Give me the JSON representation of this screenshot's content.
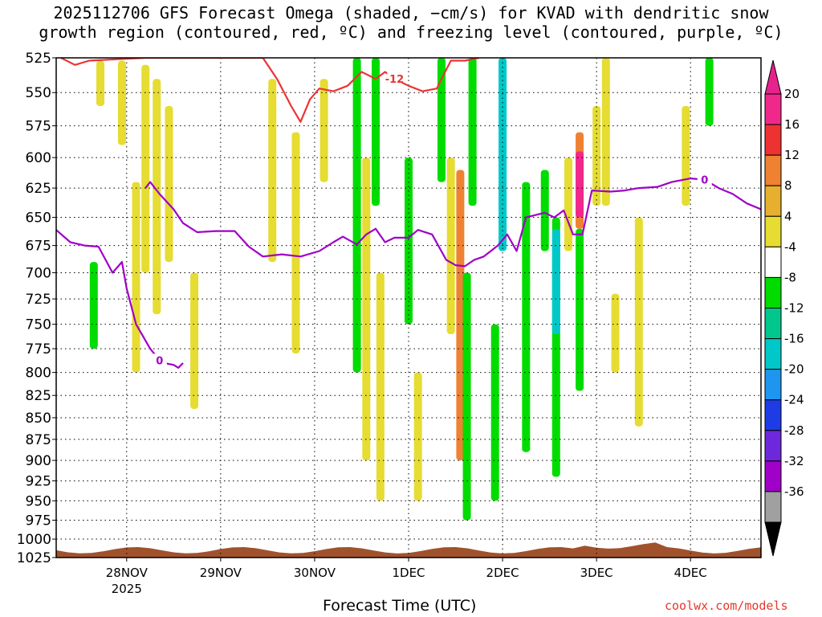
{
  "header": {
    "title_line1": "2025112706 GFS Forecast Omega (shaded, −cm/s) for KVAD with dendritic snow",
    "title_line2": "growth region (contoured, red, ºC) and freezing level (contoured, purple, ºC)"
  },
  "footer": {
    "xlabel": "Forecast Time (UTC)",
    "credit": "coolwx.com/models"
  },
  "chart_data": {
    "type": "heatmap",
    "title": "2025112706 GFS Forecast Omega (shaded, −cm/s) for KVAD with dendritic snow growth region (contoured, red, ºC) and freezing level (contoured, purple, ºC)",
    "xlabel": "Forecast Time (UTC)",
    "ylabel": "",
    "y_axis": {
      "ticks": [
        525,
        550,
        575,
        600,
        625,
        650,
        675,
        700,
        725,
        750,
        775,
        800,
        825,
        850,
        875,
        900,
        925,
        950,
        975,
        1000,
        1025
      ],
      "range": [
        525,
        1025
      ]
    },
    "x_axis": {
      "ticks": [
        "28NOV",
        "29NOV",
        "30NOV",
        "1DEC",
        "2DEC",
        "3DEC",
        "4DEC"
      ],
      "subtick_label": "2025",
      "range_days": [
        27.25,
        34.75
      ]
    },
    "grid": true,
    "colorbar": {
      "labels": [
        "20",
        "16",
        "12",
        "8",
        "4",
        "-4",
        "-8",
        "-12",
        "-16",
        "-20",
        "-24",
        "-28",
        "-32",
        "-36"
      ],
      "colors": [
        "#f0288c",
        "#ee3232",
        "#ee8232",
        "#e6af2d",
        "#e6dc32",
        "#ffffff",
        "#00dc00",
        "#00c88c",
        "#00c8c8",
        "#1e96f0",
        "#1e3ce6",
        "#6e28dc",
        "#a000c8",
        "#a0a0a0"
      ],
      "over_color": "#e6238c",
      "under_color": "#000000"
    },
    "shaded_regions": [
      {
        "day": 27.72,
        "p_top": 527,
        "p_bot": 560,
        "value": 5,
        "color": "#e6dc32"
      },
      {
        "day": 27.95,
        "p_top": 527,
        "p_bot": 590,
        "value": 5,
        "color": "#e6dc32"
      },
      {
        "day": 28.1,
        "p_top": 620,
        "p_bot": 800,
        "value": 5,
        "color": "#e6dc32"
      },
      {
        "day": 28.2,
        "p_top": 530,
        "p_bot": 700,
        "value": 6,
        "color": "#e6dc32"
      },
      {
        "day": 28.32,
        "p_top": 540,
        "p_bot": 740,
        "value": 6,
        "color": "#e6dc32"
      },
      {
        "day": 28.45,
        "p_top": 560,
        "p_bot": 690,
        "value": 6,
        "color": "#e6dc32"
      },
      {
        "day": 28.72,
        "p_top": 700,
        "p_bot": 840,
        "value": 5,
        "color": "#e6dc32"
      },
      {
        "day": 27.65,
        "p_top": 690,
        "p_bot": 775,
        "value": -6,
        "color": "#00dc00"
      },
      {
        "day": 29.55,
        "p_top": 540,
        "p_bot": 690,
        "value": 5,
        "color": "#e6dc32"
      },
      {
        "day": 29.8,
        "p_top": 580,
        "p_bot": 780,
        "value": 5,
        "color": "#e6dc32"
      },
      {
        "day": 30.1,
        "p_top": 540,
        "p_bot": 620,
        "value": 5,
        "color": "#e6dc32"
      },
      {
        "day": 30.45,
        "p_top": 525,
        "p_bot": 800,
        "value": -7,
        "color": "#00dc00"
      },
      {
        "day": 30.55,
        "p_top": 600,
        "p_bot": 900,
        "value": 5,
        "color": "#e6dc32"
      },
      {
        "day": 30.65,
        "p_top": 525,
        "p_bot": 640,
        "value": -6,
        "color": "#00dc00"
      },
      {
        "day": 30.7,
        "p_top": 700,
        "p_bot": 950,
        "value": 5,
        "color": "#e6dc32"
      },
      {
        "day": 31.0,
        "p_top": 600,
        "p_bot": 750,
        "value": -8,
        "color": "#00dc00"
      },
      {
        "day": 31.1,
        "p_top": 800,
        "p_bot": 950,
        "value": 5,
        "color": "#e6dc32"
      },
      {
        "day": 31.35,
        "p_top": 525,
        "p_bot": 620,
        "value": -7,
        "color": "#00dc00"
      },
      {
        "day": 31.45,
        "p_top": 600,
        "p_bot": 760,
        "value": 6,
        "color": "#e6dc32"
      },
      {
        "day": 31.55,
        "p_top": 610,
        "p_bot": 900,
        "value": 10,
        "color": "#ee8232"
      },
      {
        "day": 31.62,
        "p_top": 700,
        "p_bot": 975,
        "value": -8,
        "color": "#00dc00"
      },
      {
        "day": 31.68,
        "p_top": 525,
        "p_bot": 640,
        "value": -8,
        "color": "#00dc00"
      },
      {
        "day": 31.92,
        "p_top": 750,
        "p_bot": 950,
        "value": -8,
        "color": "#00dc00"
      },
      {
        "day": 32.0,
        "p_top": 525,
        "p_bot": 680,
        "value": -14,
        "color": "#00c8c8"
      },
      {
        "day": 32.25,
        "p_top": 620,
        "p_bot": 890,
        "value": -8,
        "color": "#00dc00"
      },
      {
        "day": 32.45,
        "p_top": 610,
        "p_bot": 680,
        "value": -8,
        "color": "#00dc00"
      },
      {
        "day": 32.57,
        "p_top": 650,
        "p_bot": 920,
        "value": -8,
        "color": "#00dc00"
      },
      {
        "day": 32.57,
        "p_top": 660,
        "p_bot": 760,
        "value": -13,
        "color": "#00c8c8"
      },
      {
        "day": 32.7,
        "p_top": 600,
        "p_bot": 680,
        "value": 5,
        "color": "#e6dc32"
      },
      {
        "day": 32.82,
        "p_top": 580,
        "p_bot": 660,
        "value": 10,
        "color": "#ee8232"
      },
      {
        "day": 32.82,
        "p_top": 595,
        "p_bot": 650,
        "value": 20,
        "color": "#f0288c"
      },
      {
        "day": 32.82,
        "p_top": 660,
        "p_bot": 820,
        "value": -8,
        "color": "#00dc00"
      },
      {
        "day": 33.0,
        "p_top": 560,
        "p_bot": 640,
        "value": 5,
        "color": "#e6dc32"
      },
      {
        "day": 33.1,
        "p_top": 525,
        "p_bot": 640,
        "value": 6,
        "color": "#e6dc32"
      },
      {
        "day": 33.2,
        "p_top": 720,
        "p_bot": 800,
        "value": 5,
        "color": "#e6dc32"
      },
      {
        "day": 33.45,
        "p_top": 650,
        "p_bot": 860,
        "value": 5,
        "color": "#e6dc32"
      },
      {
        "day": 33.95,
        "p_top": 560,
        "p_bot": 640,
        "value": 5,
        "color": "#e6dc32"
      },
      {
        "day": 34.2,
        "p_top": 525,
        "p_bot": 575,
        "value": -8,
        "color": "#00dc00"
      }
    ],
    "series": [
      {
        "name": "-12",
        "color": "#ee3232",
        "label_value": "-12",
        "points": [
          [
            27.3,
            525
          ],
          [
            27.45,
            530
          ],
          [
            27.6,
            527
          ],
          [
            28.2,
            525
          ],
          [
            29.45,
            525
          ],
          [
            29.6,
            540
          ],
          [
            29.75,
            560
          ],
          [
            29.85,
            572
          ],
          [
            29.95,
            555
          ],
          [
            30.05,
            547
          ],
          [
            30.2,
            549
          ],
          [
            30.35,
            545
          ],
          [
            30.5,
            535
          ],
          [
            30.65,
            540
          ],
          [
            30.75,
            535
          ],
          [
            30.85,
            540
          ],
          [
            31.0,
            545
          ],
          [
            31.15,
            549
          ],
          [
            31.3,
            547
          ],
          [
            31.35,
            540
          ],
          [
            31.45,
            527
          ],
          [
            31.6,
            527
          ],
          [
            31.75,
            525
          ]
        ],
        "label_day": 30.9
      },
      {
        "name": "0",
        "color": "#a000c8",
        "label_value": "0",
        "points": [
          [
            27.25,
            661
          ],
          [
            27.4,
            672
          ],
          [
            27.55,
            675
          ],
          [
            27.7,
            676
          ],
          [
            27.85,
            700
          ],
          [
            27.95,
            690
          ],
          [
            28.0,
            715
          ],
          [
            28.1,
            750
          ],
          [
            28.25,
            775
          ],
          [
            28.35,
            787
          ],
          [
            28.4,
            790
          ],
          [
            28.5,
            792
          ],
          [
            28.55,
            795
          ],
          [
            28.6,
            790
          ]
        ],
        "label_day": 28.35
      },
      {
        "name": "0",
        "color": "#a000c8",
        "label_value": "0",
        "points": [
          [
            28.2,
            625
          ],
          [
            28.25,
            620
          ],
          [
            28.35,
            630
          ],
          [
            28.5,
            643
          ],
          [
            28.6,
            655
          ],
          [
            28.75,
            663
          ],
          [
            28.95,
            662
          ],
          [
            29.15,
            662
          ],
          [
            29.3,
            676
          ],
          [
            29.45,
            685
          ],
          [
            29.65,
            683
          ],
          [
            29.85,
            685
          ],
          [
            30.05,
            680
          ],
          [
            30.2,
            672
          ],
          [
            30.3,
            667
          ],
          [
            30.45,
            674
          ],
          [
            30.55,
            665
          ],
          [
            30.65,
            660
          ],
          [
            30.75,
            672
          ],
          [
            30.85,
            668
          ],
          [
            31.0,
            668
          ],
          [
            31.1,
            661
          ],
          [
            31.25,
            665
          ],
          [
            31.4,
            688
          ],
          [
            31.5,
            693
          ],
          [
            31.6,
            694
          ],
          [
            31.7,
            688
          ],
          [
            31.8,
            685
          ],
          [
            31.95,
            675
          ],
          [
            32.05,
            665
          ],
          [
            32.15,
            680
          ],
          [
            32.25,
            650
          ],
          [
            32.45,
            646
          ],
          [
            32.55,
            650
          ],
          [
            32.65,
            644
          ],
          [
            32.75,
            665
          ],
          [
            32.85,
            665
          ],
          [
            32.95,
            627
          ],
          [
            33.15,
            628
          ],
          [
            33.3,
            627
          ],
          [
            33.45,
            625
          ],
          [
            33.65,
            624
          ],
          [
            33.8,
            620
          ],
          [
            34.0,
            617
          ],
          [
            34.15,
            618
          ],
          [
            34.3,
            625
          ],
          [
            34.45,
            630
          ],
          [
            34.6,
            638
          ],
          [
            34.75,
            643
          ]
        ],
        "label_day": 34.15
      }
    ],
    "terrain_color": "#a0522d",
    "surface_pressure_approx": 1015
  }
}
